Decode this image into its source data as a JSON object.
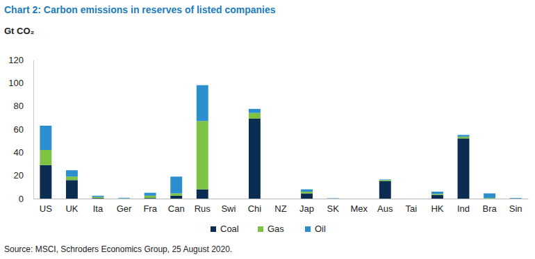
{
  "chart_data": {
    "type": "bar",
    "stacked": true,
    "title": "Chart 2: Carbon emissions in reserves of listed companies",
    "y_label": "Gt CO₂",
    "source": "Source: MSCI, Schroders Economics Group, 25 August 2020.",
    "categories": [
      "US",
      "UK",
      "Ita",
      "Ger",
      "Fra",
      "Can",
      "Rus",
      "Swi",
      "Chi",
      "NZ",
      "Jap",
      "SK",
      "Mex",
      "Aus",
      "Tai",
      "HK",
      "Ind",
      "Bra",
      "Sin"
    ],
    "series": [
      {
        "name": "Coal",
        "color": "#0b2d52",
        "values": [
          29,
          16,
          0.5,
          0,
          0.5,
          2.5,
          8,
          0,
          69,
          0,
          4.5,
          0,
          0,
          15,
          0,
          3,
          52,
          0,
          0
        ]
      },
      {
        "name": "Gas",
        "color": "#7dc242",
        "values": [
          13,
          3,
          1,
          0.2,
          2,
          2,
          59,
          0,
          5,
          0,
          1.5,
          0,
          0,
          1,
          0,
          1,
          1.5,
          0.5,
          0
        ]
      },
      {
        "name": "Oil",
        "color": "#2b8fcf",
        "values": [
          21,
          5.5,
          1,
          0.5,
          2.5,
          14.5,
          31,
          0,
          3.5,
          0,
          2,
          0.3,
          0,
          0.5,
          0,
          2,
          1.5,
          4,
          0.5
        ]
      }
    ],
    "ylim": [
      0,
      120
    ],
    "yticks": [
      0,
      20,
      40,
      60,
      80,
      100,
      120
    ],
    "grid": false,
    "legend": "bottom"
  }
}
